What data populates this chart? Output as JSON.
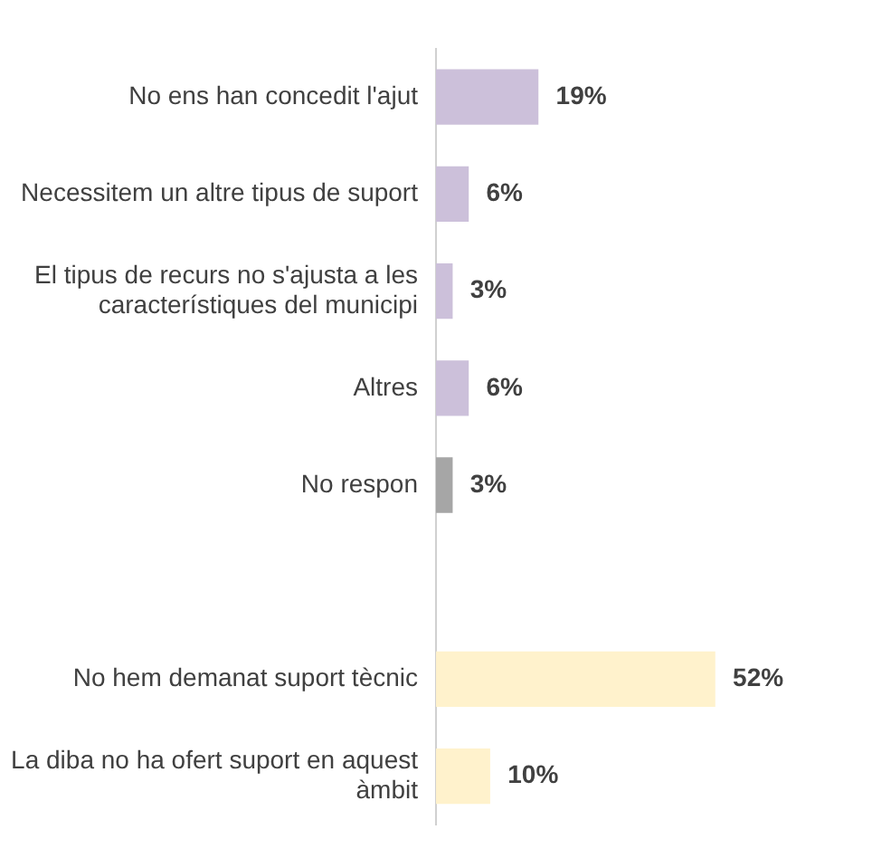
{
  "chart_data": {
    "type": "bar",
    "orientation": "horizontal",
    "categories": [
      "No ens han concedit l'ajut",
      "Necessitem un altre tipus de suport",
      "El tipus de recurs no s'ajusta a les característiques del municipi",
      "Altres",
      "No respon",
      null,
      "No hem demanat suport tècnic",
      "La diba no ha ofert suport en aquest àmbit"
    ],
    "values": [
      19,
      6,
      3,
      6,
      3,
      null,
      52,
      10
    ],
    "colors": [
      "#ccc0da",
      "#ccc0da",
      "#ccc0da",
      "#ccc0da",
      "#a6a6a6",
      null,
      "#fff2cc",
      "#fff2cc"
    ],
    "value_labels": [
      "19%",
      "6%",
      "3%",
      "6%",
      "3%",
      null,
      "52%",
      "10%"
    ],
    "legend": false
  }
}
